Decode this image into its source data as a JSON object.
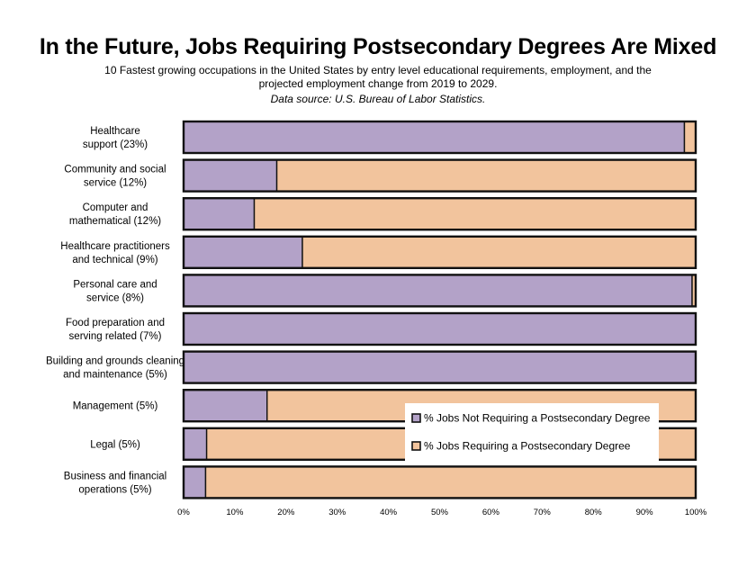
{
  "title": "In the Future, Jobs Requiring Postsecondary Degrees Are Mixed",
  "subtitle": "10 Fastest growing occupations in the United States by entry level educational requirements, employment, and the projected employment change from 2019 to 2029.",
  "source": "Data source: U.S. Bureau of Labor Statistics.",
  "colors": {
    "not_requiring": "#b3a2c8",
    "requiring": "#f2c49d",
    "border": "#111111"
  },
  "chart_data": {
    "type": "bar",
    "orientation": "horizontal",
    "stacked": true,
    "categories": [
      [
        "Healthcare",
        "support (23%)"
      ],
      [
        "Community and social",
        "service (12%)"
      ],
      [
        "Computer and",
        "mathematical (12%)"
      ],
      [
        "Healthcare practitioners",
        "and technical (9%)"
      ],
      [
        "Personal care and",
        "service (8%)"
      ],
      [
        "Food preparation and",
        "serving related (7%)"
      ],
      [
        "Building and grounds cleaning",
        "and maintenance (5%)"
      ],
      [
        "Management (5%)"
      ],
      [
        "Legal (5%)"
      ],
      [
        "Business and financial",
        "operations (5%)"
      ]
    ],
    "series": [
      {
        "name": "% Jobs Not Requiring a Postsecondary Degree",
        "values": [
          97.8,
          18.2,
          13.8,
          23.2,
          99.3,
          100,
          100,
          16.3,
          4.5,
          4.3
        ]
      },
      {
        "name": "% Jobs Requiring a Postsecondary Degree",
        "values": [
          2.2,
          81.8,
          86.2,
          76.8,
          0.7,
          0,
          0,
          83.7,
          95.5,
          95.7
        ]
      }
    ],
    "xlim": [
      0,
      100
    ],
    "xticks": [
      "0%",
      "10%",
      "20%",
      "30%",
      "40%",
      "50%",
      "60%",
      "70%",
      "80%",
      "90%",
      "100%"
    ],
    "grid": false,
    "legend_position": "bottom-right-inside"
  }
}
